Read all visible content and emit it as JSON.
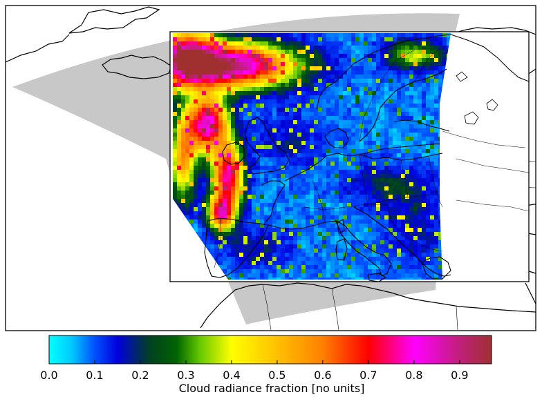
{
  "colorbar": {
    "label": "Cloud radiance fraction [no units]",
    "ticks": [
      "0.0",
      "0.1",
      "0.2",
      "0.3",
      "0.4",
      "0.5",
      "0.6",
      "0.7",
      "0.8",
      "0.9"
    ],
    "range": [
      0.0,
      0.97
    ],
    "colormap_stops": [
      {
        "value": 0.0,
        "color": "#00ffff"
      },
      {
        "value": 0.05,
        "color": "#00c8ff"
      },
      {
        "value": 0.1,
        "color": "#0050ff"
      },
      {
        "value": 0.15,
        "color": "#0000dc"
      },
      {
        "value": 0.22,
        "color": "#004020"
      },
      {
        "value": 0.28,
        "color": "#006400"
      },
      {
        "value": 0.33,
        "color": "#64c800"
      },
      {
        "value": 0.4,
        "color": "#ffff00"
      },
      {
        "value": 0.5,
        "color": "#ffc000"
      },
      {
        "value": 0.6,
        "color": "#ff8000"
      },
      {
        "value": 0.7,
        "color": "#ff0000"
      },
      {
        "value": 0.8,
        "color": "#ff00ff"
      },
      {
        "value": 0.9,
        "color": "#c0207a"
      },
      {
        "value": 0.97,
        "color": "#a03030"
      }
    ]
  },
  "map": {
    "land_outline_color": "#000000",
    "swath_outline_color": "#c8c8c8",
    "background_color": "#ffffff"
  }
}
